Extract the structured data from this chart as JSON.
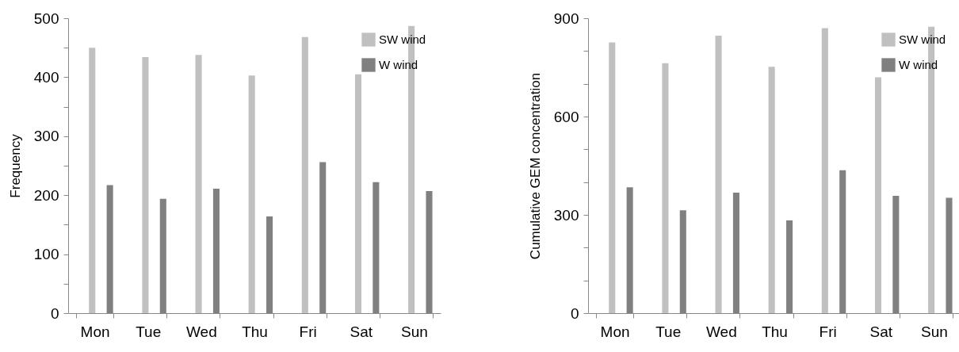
{
  "chart_data": [
    {
      "type": "bar",
      "ylabel": "Frequency",
      "categories": [
        "Mon",
        "Tue",
        "Wed",
        "Thu",
        "Fri",
        "Sat",
        "Sun"
      ],
      "series": [
        {
          "name": "SW wind",
          "color": "#c0c0c0",
          "values": [
            450,
            434,
            438,
            403,
            468,
            405,
            487
          ]
        },
        {
          "name": "W wind",
          "color": "#808080",
          "values": [
            217,
            194,
            211,
            164,
            256,
            222,
            207
          ]
        }
      ],
      "ylim": [
        0,
        500
      ],
      "yticks": [
        0,
        {
          "value": 50,
          "label": null
        },
        100,
        {
          "value": 150,
          "label": null
        },
        200,
        {
          "value": 250,
          "label": null
        },
        300,
        {
          "value": 350,
          "label": null
        },
        400,
        {
          "value": 450,
          "label": null
        },
        500
      ],
      "grid": false,
      "legend": "top right"
    },
    {
      "type": "bar",
      "ylabel": "Cumulative  GEM concentration",
      "categories": [
        "Mon",
        "Tue",
        "Wed",
        "Thu",
        "Fri",
        "Sat",
        "Sun"
      ],
      "series": [
        {
          "name": "SW wind",
          "color": "#c0c0c0",
          "values": [
            826,
            763,
            847,
            752,
            870,
            720,
            874
          ]
        },
        {
          "name": "W wind",
          "color": "#808080",
          "values": [
            384,
            314,
            368,
            283,
            436,
            358,
            352
          ]
        }
      ],
      "ylim": [
        0,
        900
      ],
      "yticks": [
        0,
        {
          "value": 100,
          "label": null
        },
        {
          "value": 200,
          "label": null
        },
        300,
        {
          "value": 400,
          "label": null
        },
        {
          "value": 500,
          "label": null
        },
        600,
        {
          "value": 700,
          "label": null
        },
        {
          "value": 800,
          "label": null
        },
        900
      ],
      "grid": false,
      "legend": "top right"
    }
  ]
}
